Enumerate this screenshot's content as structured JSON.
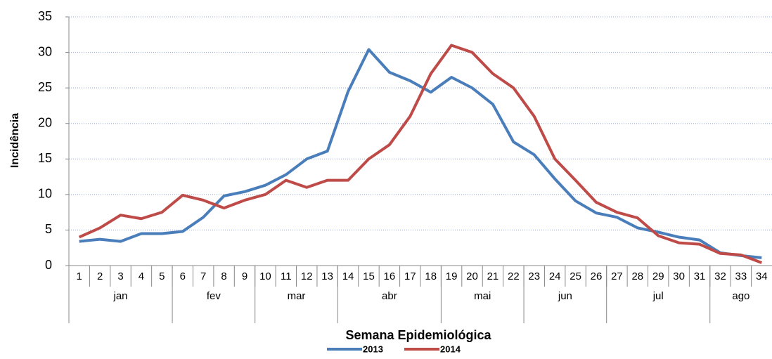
{
  "chart_data": {
    "type": "line",
    "y_label": "Incidência",
    "x_label": "Semana Epidemiológica",
    "categories": [
      "1",
      "2",
      "3",
      "4",
      "5",
      "6",
      "7",
      "8",
      "9",
      "10",
      "11",
      "12",
      "13",
      "14",
      "15",
      "16",
      "17",
      "18",
      "19",
      "20",
      "21",
      "22",
      "23",
      "24",
      "25",
      "26",
      "27",
      "28",
      "29",
      "30",
      "31",
      "32",
      "33",
      "34"
    ],
    "x_groups": [
      {
        "label": "jan",
        "span": 5
      },
      {
        "label": "fev",
        "span": 4
      },
      {
        "label": "mar",
        "span": 4
      },
      {
        "label": "abr",
        "span": 5
      },
      {
        "label": "mai",
        "span": 4
      },
      {
        "label": "jun",
        "span": 4
      },
      {
        "label": "jul",
        "span": 5
      },
      {
        "label": "ago",
        "span": 3
      }
    ],
    "series": [
      {
        "name": "2013",
        "color": "#4a7ebb",
        "values": [
          3.4,
          3.7,
          3.4,
          4.5,
          4.5,
          4.8,
          6.8,
          9.8,
          10.4,
          11.3,
          12.8,
          15.0,
          16.1,
          24.5,
          30.4,
          27.2,
          26.0,
          24.4,
          26.5,
          25.0,
          22.7,
          17.4,
          15.6,
          12.2,
          9.1,
          7.4,
          6.8,
          5.3,
          4.7,
          4.0,
          3.6,
          1.8,
          1.4,
          1.1
        ]
      },
      {
        "name": "2014",
        "color": "#be4b48",
        "values": [
          4.0,
          5.3,
          7.1,
          6.6,
          7.5,
          9.9,
          9.2,
          8.1,
          9.2,
          10.0,
          12.0,
          11.0,
          12.0,
          12.0,
          15.0,
          17.0,
          21.0,
          27.0,
          31.0,
          30.0,
          27.0,
          25.0,
          21.0,
          15.0,
          12.0,
          8.9,
          7.5,
          6.7,
          4.2,
          3.2,
          3.0,
          1.7,
          1.5,
          0.4
        ]
      }
    ],
    "ylim": [
      0,
      35
    ],
    "yticks": [
      0,
      5,
      10,
      15,
      20,
      25,
      30,
      35
    ],
    "grid": true,
    "legend": "bottom"
  }
}
